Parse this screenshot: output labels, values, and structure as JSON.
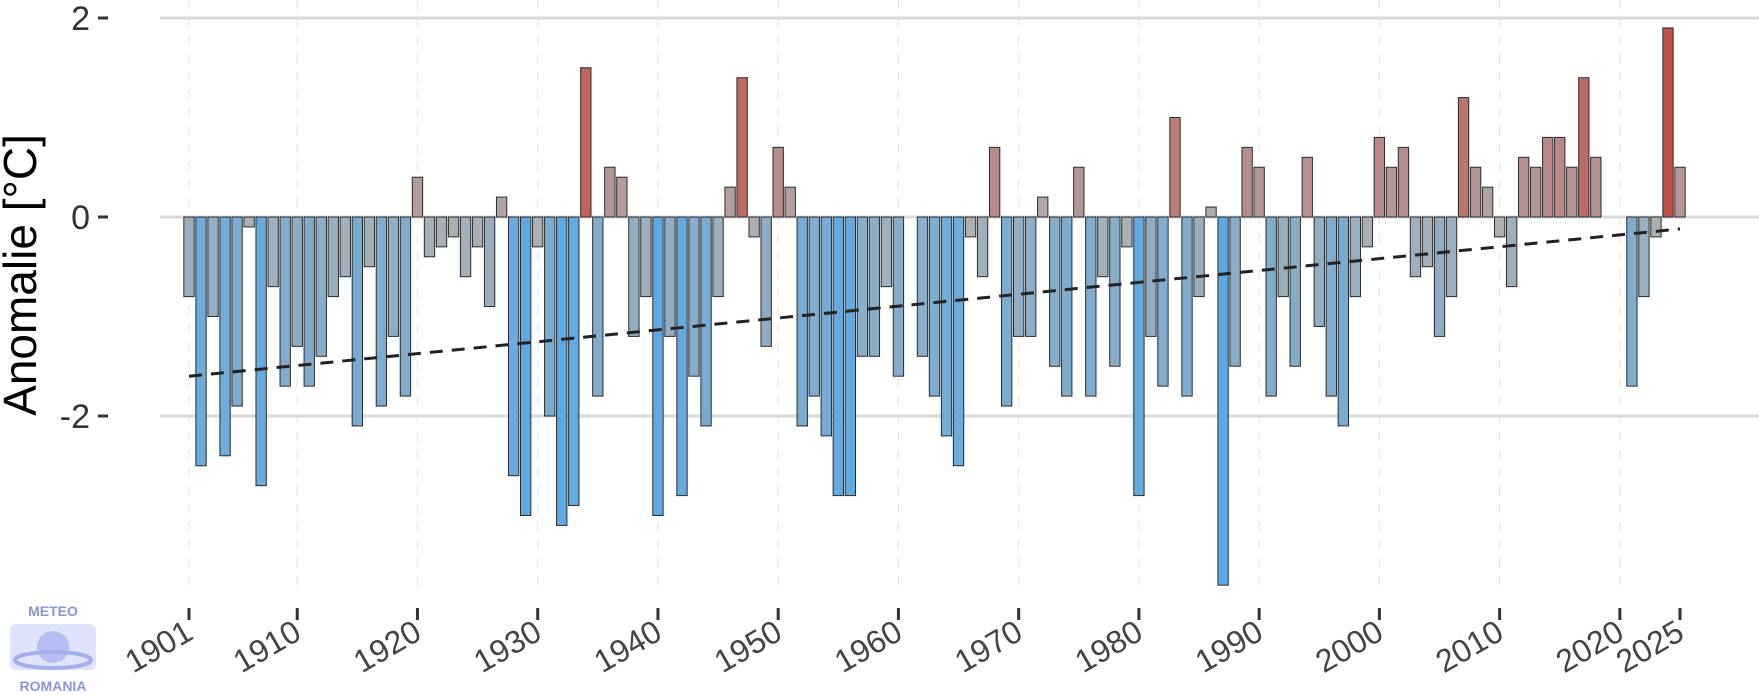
{
  "logo": {
    "top": "METEO",
    "bottom": "ROMANIA"
  },
  "colors": {
    "cold": "#5aa9e6",
    "neutral": "#b0b0b0",
    "warm": "#c0524a",
    "trend": "#222222",
    "grid_major": "#d9d9d9",
    "grid_minor": "#e6e6e6"
  },
  "chart_data": {
    "type": "bar",
    "title": "",
    "xlabel": "",
    "ylabel": "Anomalie [°C]",
    "ylim": [
      -3.8,
      2.0
    ],
    "yticks": [
      {
        "value": 2,
        "label": "2"
      },
      {
        "value": 0,
        "label": "0"
      },
      {
        "value": -2,
        "label": "-2"
      }
    ],
    "xticks": [
      {
        "value": 1901,
        "label": "1901"
      },
      {
        "value": 1910,
        "label": "1910"
      },
      {
        "value": 1920,
        "label": "1920"
      },
      {
        "value": 1930,
        "label": "1930"
      },
      {
        "value": 1940,
        "label": "1940"
      },
      {
        "value": 1950,
        "label": "1950"
      },
      {
        "value": 1960,
        "label": "1960"
      },
      {
        "value": 1970,
        "label": "1970"
      },
      {
        "value": 1980,
        "label": "1980"
      },
      {
        "value": 1990,
        "label": "1990"
      },
      {
        "value": 2000,
        "label": "2000"
      },
      {
        "value": 2010,
        "label": "2010"
      },
      {
        "value": 2020,
        "label": "2020"
      },
      {
        "value": 2025,
        "label": "2025"
      }
    ],
    "grid": true,
    "start_year": 1901,
    "values": [
      -0.8,
      -2.5,
      -1.0,
      -2.4,
      -1.9,
      -0.1,
      -2.7,
      -0.7,
      -1.7,
      -1.3,
      -1.7,
      -1.4,
      -0.8,
      -0.6,
      -2.1,
      -0.5,
      -1.9,
      -1.2,
      -1.8,
      0.4,
      -0.4,
      -0.3,
      -0.2,
      -0.6,
      -0.3,
      -0.9,
      0.2,
      -2.6,
      -3.0,
      -0.3,
      -2.0,
      -3.1,
      -2.9,
      1.5,
      -1.8,
      0.5,
      0.4,
      -1.2,
      -0.8,
      -3.0,
      -1.2,
      -2.8,
      -1.6,
      -2.1,
      -0.8,
      0.3,
      1.4,
      -0.2,
      -1.3,
      0.7,
      0.3,
      -2.1,
      -1.8,
      -2.2,
      -2.8,
      -2.8,
      -1.4,
      -1.4,
      -0.7,
      -1.6,
      0.0,
      -1.4,
      -1.8,
      -2.2,
      -2.5,
      -0.2,
      -0.6,
      0.7,
      -1.9,
      -1.2,
      -1.2,
      0.2,
      -1.5,
      -1.8,
      0.5,
      -1.8,
      -0.6,
      -1.5,
      -0.3,
      -2.8,
      -1.2,
      -1.7,
      1.0,
      -1.8,
      -0.8,
      0.1,
      -3.7,
      -1.5,
      0.7,
      0.5,
      -1.8,
      -0.8,
      -1.5,
      0.6,
      -1.1,
      -1.8,
      -2.1,
      -0.8,
      -0.3,
      0.8,
      0.5,
      0.7,
      -0.6,
      -0.5,
      -1.2,
      -0.8,
      1.2,
      0.5,
      0.3,
      -0.2,
      -0.7,
      0.6,
      0.5,
      0.8,
      0.8,
      0.5,
      1.4,
      0.6,
      0.0,
      0.0,
      -1.7,
      -0.8,
      -0.2,
      1.9,
      0.5
    ],
    "trend": {
      "style": "dashed",
      "start": {
        "x": 1901,
        "y": -1.6
      },
      "end": {
        "x": 2025,
        "y": -0.12
      }
    }
  }
}
